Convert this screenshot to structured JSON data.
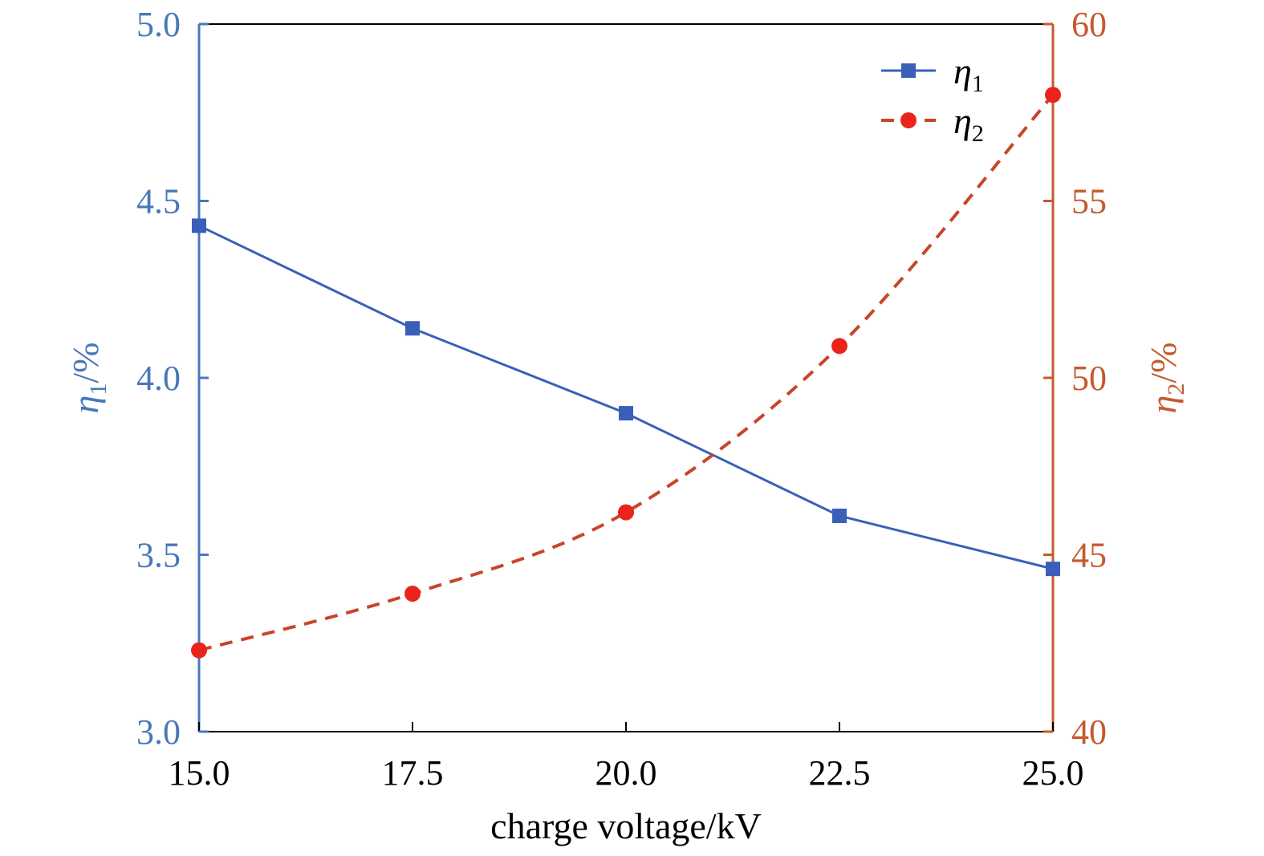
{
  "chart_data": {
    "type": "line",
    "xlabel": "charge voltage/kV",
    "x": [
      15.0,
      17.5,
      20.0,
      22.5,
      25.0
    ],
    "xlim": [
      15.0,
      25.0
    ],
    "x_ticks": [
      "15.0",
      "17.5",
      "20.0",
      "22.5",
      "25.0"
    ],
    "y_left": {
      "label_symbol": "η",
      "label_sub": "1",
      "label_unit": "/%",
      "lim": [
        3.0,
        5.0
      ],
      "ticks": [
        "3.0",
        "3.5",
        "4.0",
        "4.5",
        "5.0"
      ],
      "color": "#4a78b8"
    },
    "y_right": {
      "label_symbol": "η",
      "label_sub": "2",
      "label_unit": "/%",
      "lim": [
        40,
        60
      ],
      "ticks": [
        "40",
        "45",
        "50",
        "55",
        "60"
      ],
      "color": "#c55a2e"
    },
    "series": [
      {
        "name_symbol": "η",
        "name_sub": "1",
        "axis": "left",
        "values": [
          4.43,
          4.14,
          3.9,
          3.61,
          3.46
        ],
        "color": "#3b5fb8",
        "line_style": "solid",
        "marker": "square"
      },
      {
        "name_symbol": "η",
        "name_sub": "2",
        "axis": "right",
        "values": [
          42.3,
          43.9,
          46.2,
          50.9,
          58.0
        ],
        "color": "#c8452a",
        "marker_color": "#e8241c",
        "line_style": "dashed",
        "marker": "circle"
      }
    ],
    "legend": "top-right",
    "grid": false
  }
}
